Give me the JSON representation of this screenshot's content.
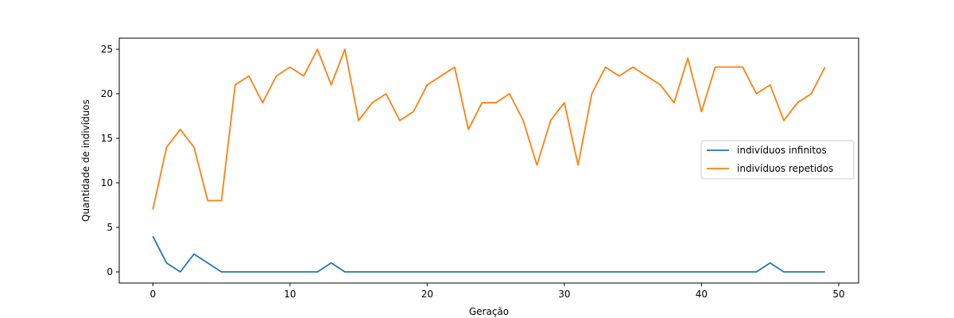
{
  "chart_data": {
    "type": "line",
    "title": "",
    "xlabel": "Geração",
    "ylabel": "Quantidade de indivíduos",
    "xlim": [
      -2.45,
      51.45
    ],
    "ylim": [
      -1.25,
      26.25
    ],
    "xticks": [
      0,
      10,
      20,
      30,
      40,
      50
    ],
    "yticks": [
      0,
      5,
      10,
      15,
      20,
      25
    ],
    "grid": false,
    "legend_position": "center-right",
    "x": [
      0,
      1,
      2,
      3,
      4,
      5,
      6,
      7,
      8,
      9,
      10,
      11,
      12,
      13,
      14,
      15,
      16,
      17,
      18,
      19,
      20,
      21,
      22,
      23,
      24,
      25,
      26,
      27,
      28,
      29,
      30,
      31,
      32,
      33,
      34,
      35,
      36,
      37,
      38,
      39,
      40,
      41,
      42,
      43,
      44,
      45,
      46,
      47,
      48,
      49
    ],
    "series": [
      {
        "name": "indivíduos infinitos",
        "color": "#1f77b4",
        "values": [
          4,
          1,
          0,
          2,
          1,
          0,
          0,
          0,
          0,
          0,
          0,
          0,
          0,
          1,
          0,
          0,
          0,
          0,
          0,
          0,
          0,
          0,
          0,
          0,
          0,
          0,
          0,
          0,
          0,
          0,
          0,
          0,
          0,
          0,
          0,
          0,
          0,
          0,
          0,
          0,
          0,
          0,
          0,
          0,
          0,
          1,
          0,
          0,
          0,
          0
        ]
      },
      {
        "name": "indivíduos repetidos",
        "color": "#ff7f0e",
        "values": [
          7,
          14,
          16,
          14,
          8,
          8,
          21,
          22,
          19,
          22,
          23,
          22,
          25,
          21,
          25,
          17,
          19,
          20,
          17,
          18,
          21,
          22,
          23,
          16,
          19,
          19,
          20,
          17,
          12,
          17,
          19,
          12,
          20,
          23,
          22,
          23,
          22,
          21,
          19,
          24,
          18,
          23,
          23,
          23,
          20,
          21,
          17,
          19,
          20,
          23
        ]
      }
    ]
  }
}
